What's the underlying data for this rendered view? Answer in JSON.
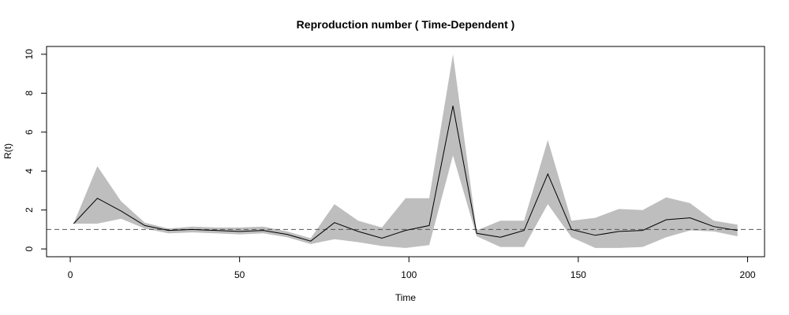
{
  "chart_data": {
    "type": "area",
    "title": "Reproduction number ( Time-Dependent )",
    "xlabel": "Time",
    "ylabel": "R(t)",
    "xlim": [
      -7,
      205
    ],
    "ylim": [
      -0.4,
      10.4
    ],
    "xticks": [
      0,
      50,
      100,
      150,
      200
    ],
    "yticks": [
      0,
      2,
      4,
      6,
      8,
      10
    ],
    "reference_line": 1,
    "grid": false,
    "x": [
      1,
      8,
      15,
      22,
      29,
      36,
      43,
      50,
      57,
      64,
      71,
      78,
      85,
      92,
      99,
      106,
      113,
      120,
      127,
      134,
      141,
      148,
      155,
      162,
      169,
      176,
      183,
      190,
      197
    ],
    "mean": [
      1.3,
      2.6,
      1.95,
      1.2,
      0.95,
      1.0,
      0.95,
      0.9,
      0.95,
      0.75,
      0.4,
      1.35,
      0.9,
      0.55,
      0.95,
      1.2,
      7.35,
      0.8,
      0.6,
      0.95,
      3.85,
      1.0,
      0.7,
      0.9,
      0.95,
      1.5,
      1.6,
      1.15,
      0.95
    ],
    "upper": [
      1.3,
      4.25,
      2.45,
      1.35,
      1.05,
      1.15,
      1.1,
      1.1,
      1.15,
      0.9,
      0.55,
      2.3,
      1.45,
      1.1,
      2.6,
      2.6,
      10.0,
      0.95,
      1.45,
      1.45,
      5.6,
      1.45,
      1.6,
      2.05,
      2.0,
      2.65,
      2.35,
      1.45,
      1.25
    ],
    "lower": [
      1.3,
      1.3,
      1.55,
      1.05,
      0.8,
      0.85,
      0.8,
      0.75,
      0.8,
      0.6,
      0.25,
      0.5,
      0.35,
      0.15,
      0.05,
      0.2,
      4.8,
      0.65,
      0.1,
      0.1,
      2.3,
      0.6,
      0.05,
      0.05,
      0.1,
      0.6,
      0.95,
      0.9,
      0.65
    ],
    "colors": {
      "band": "#bebebe",
      "line": "#000000",
      "reference": "#555555"
    }
  }
}
